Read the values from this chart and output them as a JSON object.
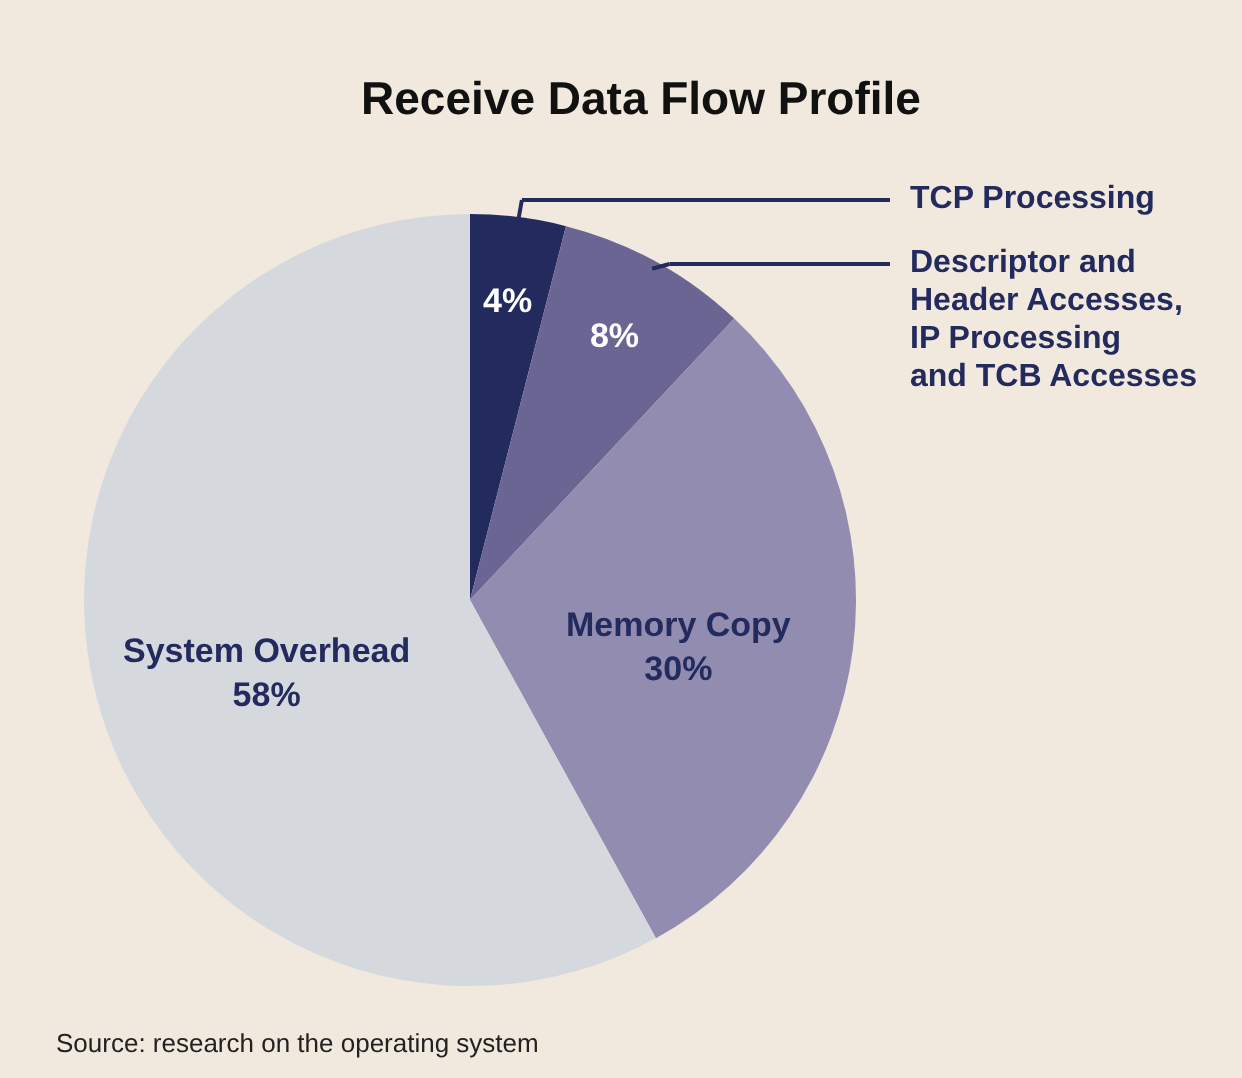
{
  "chart_data": {
    "type": "pie",
    "title": "Receive Data Flow Profile",
    "categories": [
      "TCP Processing",
      "Descriptor and Header Accesses, IP Processing and TCB Accesses",
      "Memory Copy",
      "System Overhead"
    ],
    "values": [
      4,
      8,
      30,
      58
    ],
    "colors": [
      "#232a5e",
      "#6b6594",
      "#928cb0",
      "#d5d9de"
    ],
    "value_labels": [
      "4%",
      "8%",
      "30%",
      "58%"
    ],
    "annotations": [
      "Source: research on the operating system"
    ]
  }
}
